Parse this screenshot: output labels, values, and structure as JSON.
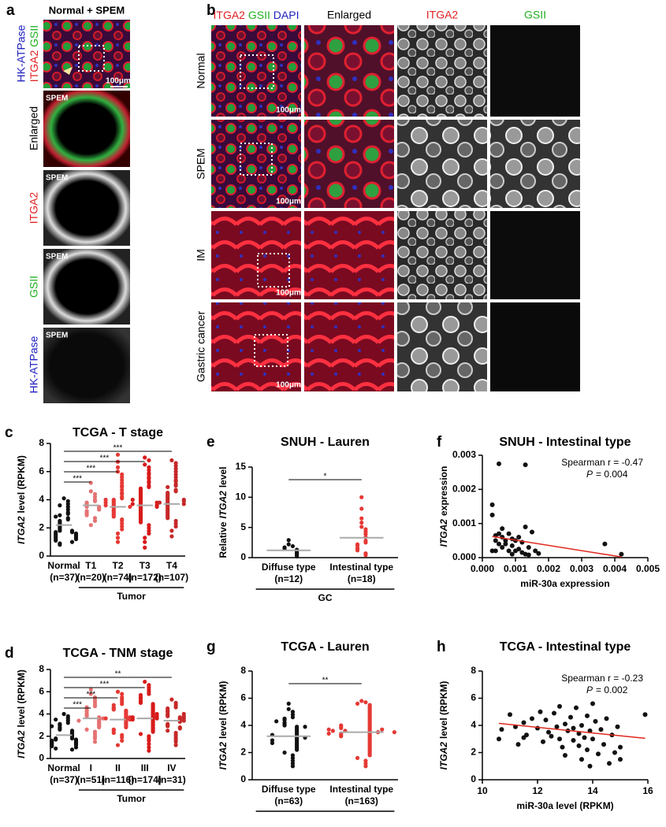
{
  "panels": {
    "a": {
      "letter": "a",
      "title": "Normal + SPEM",
      "channels": [
        "ITGA2",
        "GSII",
        "HK-ATPase"
      ],
      "rows": [
        "Enlarged",
        "ITGA2",
        "GSII",
        "HK-ATPase"
      ],
      "inset": "SPEM",
      "scale_bar": "100μm"
    },
    "b": {
      "letter": "b",
      "columns": [
        "ITGA2",
        "GSII",
        "DAPI",
        "Enlarged",
        "ITGA2",
        "GSII"
      ],
      "rows": [
        "Normal",
        "SPEM",
        "IM",
        "Gastric cancer"
      ],
      "scale_bar": "100μm"
    }
  },
  "chart_data": [
    {
      "type": "dot",
      "letter": "c",
      "title": "TCGA - T stage",
      "ylabel": [
        {
          "text": "ITGA2",
          "italic": true
        },
        {
          "text": "level (RPKM)"
        }
      ],
      "categories": [
        "Normal",
        "T1",
        "T2",
        "T3",
        "T4"
      ],
      "counts": [
        "(n=37)",
        "(n=20)",
        "(n=74)",
        "(n=172)",
        "(n=107)"
      ],
      "group": {
        "label": "Tumor",
        "categories": [
          "T1",
          "T2",
          "T3",
          "T4"
        ]
      },
      "colors": [
        "#111111",
        "#e57373",
        "#e53935",
        "#d81b1b",
        "#c62828"
      ],
      "values": [
        [
          4.1,
          3.9,
          3.7,
          3.5,
          3.3,
          3.1,
          3.0,
          2.9,
          2.7,
          2.6,
          2.5,
          2.4,
          2.3,
          2.2,
          2.1,
          2.0,
          1.9,
          1.8,
          1.8,
          1.7,
          1.7,
          1.6,
          1.6,
          1.5,
          1.5,
          1.4,
          1.4,
          1.3,
          1.3,
          1.2,
          1.2,
          1.1,
          1.0,
          0.9,
          0.8,
          2.8,
          3.6
        ],
        [
          5.2,
          4.6,
          4.4,
          4.2,
          4.0,
          3.9,
          3.8,
          3.7,
          3.6,
          3.5,
          3.5,
          3.4,
          3.3,
          3.2,
          3.1,
          3.0,
          2.9,
          2.7,
          2.5,
          2.2
        ],
        [
          7.2,
          6.7,
          6.3,
          6.0,
          5.8,
          5.6,
          5.4,
          5.2,
          5.0,
          4.9,
          4.7,
          4.5,
          4.4,
          4.2,
          4.1,
          4.0,
          3.9,
          3.8,
          3.7,
          3.6,
          3.5,
          3.4,
          3.3,
          3.2,
          3.1,
          3.0,
          2.9,
          2.8,
          2.6,
          2.5,
          2.3,
          2.1,
          1.9,
          1.6,
          1.3,
          1.0,
          3.5,
          3.6,
          3.8,
          4.0
        ],
        [
          7.0,
          6.8,
          6.5,
          6.3,
          6.1,
          5.9,
          5.8,
          5.6,
          5.5,
          5.3,
          5.2,
          5.0,
          4.9,
          4.8,
          4.7,
          4.6,
          4.5,
          4.4,
          4.3,
          4.2,
          4.1,
          4.0,
          3.9,
          3.8,
          3.7,
          3.6,
          3.5,
          3.4,
          3.3,
          3.2,
          3.1,
          3.0,
          2.9,
          2.8,
          2.7,
          2.6,
          2.5,
          2.4,
          2.2,
          2.0,
          1.8,
          1.6,
          1.3,
          1.0,
          0.6,
          3.6,
          3.7,
          3.8,
          3.5,
          4.0
        ],
        [
          6.8,
          6.6,
          6.4,
          6.2,
          6.0,
          5.8,
          5.6,
          5.4,
          5.3,
          5.1,
          5.0,
          4.9,
          4.7,
          4.6,
          4.5,
          4.4,
          4.3,
          4.2,
          4.1,
          4.0,
          3.9,
          3.8,
          3.7,
          3.6,
          3.5,
          3.4,
          3.3,
          3.2,
          3.1,
          3.0,
          2.9,
          2.8,
          2.7,
          2.5,
          2.3,
          2.1,
          1.8,
          1.4,
          3.7,
          3.8,
          3.9,
          4.0
        ]
      ],
      "means": [
        2.2,
        3.6,
        3.5,
        3.6,
        3.7
      ],
      "mean_color": "#aaaaaa",
      "comparisons": [
        {
          "groups": [
            "Normal",
            "T1"
          ],
          "label": "***"
        },
        {
          "groups": [
            "Normal",
            "T2"
          ],
          "label": "***"
        },
        {
          "groups": [
            "Normal",
            "T3"
          ],
          "label": "***"
        },
        {
          "groups": [
            "Normal",
            "T4"
          ],
          "label": "***"
        }
      ],
      "ylim": [
        0,
        8
      ],
      "yticks": [
        0,
        2,
        4,
        6,
        8
      ]
    },
    {
      "type": "dot",
      "letter": "e",
      "title": "SNUH - Lauren",
      "ylabel": [
        {
          "text": "Relative"
        },
        {
          "text": "ITGA2",
          "italic": true
        },
        {
          "text": "level"
        }
      ],
      "categories": [
        "Diffuse type",
        "Intestinal type"
      ],
      "counts": [
        "(n=12)",
        "(n=18)"
      ],
      "group": {
        "label": "GC",
        "categories": [
          "Diffuse type",
          "Intestinal type"
        ]
      },
      "colors": [
        "#111111",
        "#e53935"
      ],
      "values": [
        [
          2.9,
          2.2,
          1.9,
          1.7,
          1.5,
          1.3,
          1.2,
          1.0,
          0.8,
          0.6,
          0.4,
          0.2
        ],
        [
          10.0,
          8.1,
          6.5,
          5.8,
          5.1,
          4.7,
          4.3,
          3.9,
          3.4,
          2.8,
          2.5,
          2.2,
          2.0,
          1.6,
          1.5,
          1.2,
          0.7,
          0.4
        ]
      ],
      "means": [
        1.2,
        3.3
      ],
      "mean_color": "#aaaaaa",
      "comparisons": [
        {
          "groups": [
            "Diffuse type",
            "Intestinal type"
          ],
          "label": "*"
        }
      ],
      "ylim": [
        0,
        15
      ],
      "yticks": [
        0,
        5,
        10,
        15
      ]
    },
    {
      "type": "scatter",
      "letter": "f",
      "title": "SNUH - Intestinal type",
      "ylabel": [
        {
          "text": "ITGA2",
          "italic": true
        },
        {
          "text": "expression"
        }
      ],
      "xlabel": "miR-30a expression",
      "x": [
        0.0003,
        0.0003,
        0.0004,
        0.0005,
        0.0006,
        0.0004,
        0.0005,
        0.0006,
        0.0007,
        0.0008,
        0.0009,
        0.001,
        0.0011,
        0.0012,
        0.0013,
        0.0014,
        0.0015,
        0.0016,
        0.0017,
        0.0003,
        0.0005,
        0.0007,
        0.0009,
        0.0011,
        0.0013,
        0.0008,
        0.001,
        0.0012,
        0.0014,
        0.0037,
        0.0042,
        0.0013,
        0.0006,
        0.0004,
        0.0009
      ],
      "y": [
        0.00155,
        0.00125,
        0.00065,
        0.00275,
        0.0006,
        0.0005,
        0.0004,
        0.0003,
        0.0005,
        0.0007,
        0.00035,
        0.0002,
        0.0006,
        0.00045,
        0.0001,
        0.0003,
        0.00075,
        0.0002,
        0.00012,
        0.0002,
        0.0007,
        0.0004,
        0.0001,
        0.00025,
        0.00272,
        0.0002,
        0.0005,
        0.00015,
        8e-05,
        0.0004,
        0.0001,
        0.0009,
        0.00085,
        0.0002,
        0.00055
      ],
      "color": "#111111",
      "fit_line": {
        "x": [
          0.0003,
          0.0042
        ],
        "y": [
          0.00062,
          2e-05
        ],
        "color": "#e0281e"
      },
      "annotation": [
        "Spearman r = -0.47",
        [
          {
            "text": "P",
            "italic": true
          },
          {
            "text": "= 0.004"
          }
        ]
      ],
      "xlim": [
        0,
        0.005
      ],
      "xticks": [
        {
          "value": 0,
          "label": "0.000"
        },
        {
          "value": 0.001,
          "label": "0.001"
        },
        {
          "value": 0.002,
          "label": "0.002"
        },
        {
          "value": 0.003,
          "label": "0.003"
        },
        {
          "value": 0.004,
          "label": "0.004"
        },
        {
          "value": 0.005,
          "label": "0.005"
        }
      ],
      "ylim": [
        0,
        0.003
      ],
      "yticks": [
        {
          "value": 0,
          "label": "0.000"
        },
        {
          "value": 0.001,
          "label": "0.001"
        },
        {
          "value": 0.002,
          "label": "0.002"
        },
        {
          "value": 0.003,
          "label": "0.003"
        }
      ]
    },
    {
      "type": "dot",
      "letter": "d",
      "title": "TCGA - TNM stage",
      "ylabel": [
        {
          "text": "ITGA2",
          "italic": true
        },
        {
          "text": "level (RPKM)"
        }
      ],
      "categories": [
        "Normal",
        "I",
        "II",
        "III",
        "IV"
      ],
      "counts": [
        "(n=37)",
        "(n=51)",
        "(n=116)",
        "(n=174)",
        "(n=31)"
      ],
      "group": {
        "label": "Tumor",
        "categories": [
          "I",
          "II",
          "III",
          "IV"
        ]
      },
      "colors": [
        "#111111",
        "#e57373",
        "#e53935",
        "#d81b1b",
        "#c62828"
      ],
      "values": [
        [
          4.0,
          3.8,
          3.6,
          3.4,
          3.2,
          3.1,
          3.0,
          2.8,
          2.7,
          2.6,
          2.5,
          2.4,
          2.3,
          2.2,
          2.1,
          2.0,
          1.9,
          1.8,
          1.8,
          1.7,
          1.7,
          1.6,
          1.6,
          1.5,
          1.5,
          1.4,
          1.4,
          1.3,
          1.3,
          1.2,
          1.2,
          1.1,
          1.0,
          0.9,
          0.8,
          2.9,
          3.5
        ],
        [
          6.2,
          5.8,
          5.5,
          5.3,
          5.1,
          4.9,
          4.7,
          4.6,
          4.5,
          4.3,
          4.2,
          4.0,
          3.9,
          3.8,
          3.7,
          3.6,
          3.5,
          3.4,
          3.3,
          3.2,
          3.1,
          3.0,
          2.9,
          2.8,
          2.6,
          2.4,
          2.2,
          2.0,
          1.8,
          1.5,
          3.6,
          3.4
        ],
        [
          6.0,
          5.8,
          5.5,
          5.3,
          5.1,
          4.9,
          4.8,
          4.6,
          4.5,
          4.4,
          4.3,
          4.2,
          4.1,
          4.0,
          3.9,
          3.8,
          3.7,
          3.6,
          3.5,
          3.4,
          3.3,
          3.2,
          3.1,
          3.0,
          2.9,
          2.8,
          2.6,
          2.5,
          2.3,
          2.1,
          1.9,
          1.6,
          1.2,
          3.5,
          3.6,
          3.7
        ],
        [
          6.9,
          6.6,
          6.4,
          6.2,
          6.0,
          5.8,
          5.7,
          5.5,
          5.4,
          5.2,
          5.1,
          5.0,
          4.9,
          4.8,
          4.7,
          4.6,
          4.5,
          4.4,
          4.3,
          4.2,
          4.1,
          4.0,
          3.9,
          3.8,
          3.7,
          3.6,
          3.5,
          3.4,
          3.3,
          3.2,
          3.1,
          3.0,
          2.9,
          2.8,
          2.7,
          2.6,
          2.5,
          2.4,
          2.2,
          2.0,
          1.8,
          1.6,
          1.3,
          1.0,
          0.7,
          3.6,
          3.7,
          3.8,
          3.5,
          4.0
        ],
        [
          5.3,
          5.0,
          4.8,
          4.6,
          4.5,
          4.3,
          4.2,
          4.0,
          3.9,
          3.8,
          3.7,
          3.6,
          3.5,
          3.4,
          3.3,
          3.1,
          3.0,
          2.9,
          2.8,
          2.7,
          2.5,
          2.3,
          2.1,
          1.9,
          1.7,
          1.5,
          1.2,
          3.6,
          3.4,
          3.8,
          4.0
        ]
      ],
      "means": [
        2.1,
        3.6,
        3.5,
        3.6,
        3.4
      ],
      "mean_color": "#aaaaaa",
      "comparisons": [
        {
          "groups": [
            "Normal",
            "I"
          ],
          "label": "***"
        },
        {
          "groups": [
            "Normal",
            "II"
          ],
          "label": "***"
        },
        {
          "groups": [
            "Normal",
            "III"
          ],
          "label": "***"
        },
        {
          "groups": [
            "Normal",
            "IV"
          ],
          "label": "**"
        }
      ],
      "ylim": [
        0,
        8
      ],
      "yticks": [
        0,
        2,
        4,
        6,
        8
      ]
    },
    {
      "type": "dot",
      "letter": "g",
      "title": "TCGA - Lauren",
      "ylabel": [
        {
          "text": "ITGA2",
          "italic": true
        },
        {
          "text": "level (RPKM)"
        }
      ],
      "categories": [
        "Diffuse type",
        "Intestinal type"
      ],
      "counts": [
        "(n=63)",
        "(n=163)"
      ],
      "group": {
        "categories": [
          "Diffuse type",
          "Intestinal type"
        ]
      },
      "colors": [
        "#111111",
        "#e53935"
      ],
      "values": [
        [
          5.6,
          5.2,
          5.0,
          4.8,
          4.6,
          4.5,
          4.4,
          4.2,
          4.1,
          4.0,
          3.9,
          3.8,
          3.7,
          3.6,
          3.5,
          3.4,
          3.3,
          3.2,
          3.1,
          3.0,
          2.9,
          2.8,
          2.7,
          2.6,
          2.5,
          2.4,
          2.3,
          2.2,
          2.0,
          1.8,
          1.6,
          1.4,
          1.2,
          1.0,
          3.1,
          2.9,
          3.3,
          2.7,
          4.3,
          3.9
        ],
        [
          5.8,
          5.7,
          5.6,
          5.5,
          5.4,
          5.3,
          5.2,
          5.1,
          5.0,
          4.9,
          4.8,
          4.7,
          4.6,
          4.5,
          4.4,
          4.3,
          4.2,
          4.1,
          4.0,
          3.9,
          3.8,
          3.7,
          3.6,
          3.5,
          3.4,
          3.3,
          3.2,
          3.1,
          3.0,
          2.9,
          2.8,
          2.7,
          2.6,
          2.5,
          2.4,
          2.3,
          2.2,
          2.1,
          2.0,
          1.9,
          1.8,
          1.6,
          1.4,
          1.2,
          1.0,
          3.5,
          3.6,
          3.7,
          3.4,
          3.8,
          3.3,
          3.9,
          3.2,
          4.0,
          3.6,
          3.5,
          3.7,
          3.4
        ]
      ],
      "means": [
        3.2,
        3.5
      ],
      "mean_color": "#aaaaaa",
      "comparisons": [
        {
          "groups": [
            "Diffuse type",
            "Intestinal type"
          ],
          "label": "**"
        }
      ],
      "ylim": [
        0,
        8
      ],
      "yticks": [
        0,
        2,
        4,
        6,
        8
      ]
    },
    {
      "type": "scatter",
      "letter": "h",
      "title": "TCGA - Intestinal type",
      "ylabel": [
        {
          "text": "ITGA2",
          "italic": true
        },
        {
          "text": "level (RPKM)"
        }
      ],
      "xlabel": "miR-30a level (RPKM)",
      "x": [
        10.6,
        10.7,
        11.0,
        11.2,
        11.3,
        11.5,
        11.6,
        11.8,
        12.0,
        12.1,
        12.2,
        12.3,
        12.4,
        12.5,
        12.6,
        12.7,
        12.8,
        12.9,
        13.0,
        13.0,
        13.1,
        13.2,
        13.3,
        13.3,
        13.4,
        13.5,
        13.5,
        13.6,
        13.6,
        13.7,
        13.8,
        13.8,
        13.9,
        14.0,
        14.0,
        14.1,
        14.2,
        14.3,
        14.4,
        14.5,
        14.6,
        14.7,
        14.8,
        14.9,
        15.0,
        15.0,
        15.9,
        12.8,
        13.9,
        11.5
      ],
      "y": [
        3.0,
        3.7,
        4.8,
        3.9,
        2.6,
        4.2,
        3.3,
        4.5,
        3.8,
        5.0,
        2.8,
        4.4,
        3.5,
        3.2,
        4.9,
        3.9,
        3.0,
        2.4,
        4.1,
        1.8,
        3.6,
        4.6,
        2.9,
        3.8,
        5.3,
        3.4,
        2.5,
        4.0,
        1.5,
        3.1,
        4.7,
        2.2,
        3.6,
        5.6,
        3.0,
        4.3,
        1.9,
        3.7,
        2.6,
        4.5,
        1.2,
        3.3,
        2.0,
        3.9,
        2.4,
        1.5,
        4.8,
        5.4,
        1.0,
        3.1
      ],
      "color": "#111111",
      "fit_line": {
        "x": [
          10.6,
          15.9
        ],
        "y": [
          4.15,
          3.05
        ],
        "color": "#e0281e"
      },
      "annotation": [
        "Spearman r = -0.23",
        [
          {
            "text": "P",
            "italic": true
          },
          {
            "text": "= 0.002"
          }
        ]
      ],
      "xlim": [
        10,
        16
      ],
      "xticks": [
        10,
        12,
        14,
        16
      ],
      "ylim": [
        0,
        8
      ],
      "yticks": [
        0,
        2,
        4,
        6,
        8
      ]
    }
  ]
}
